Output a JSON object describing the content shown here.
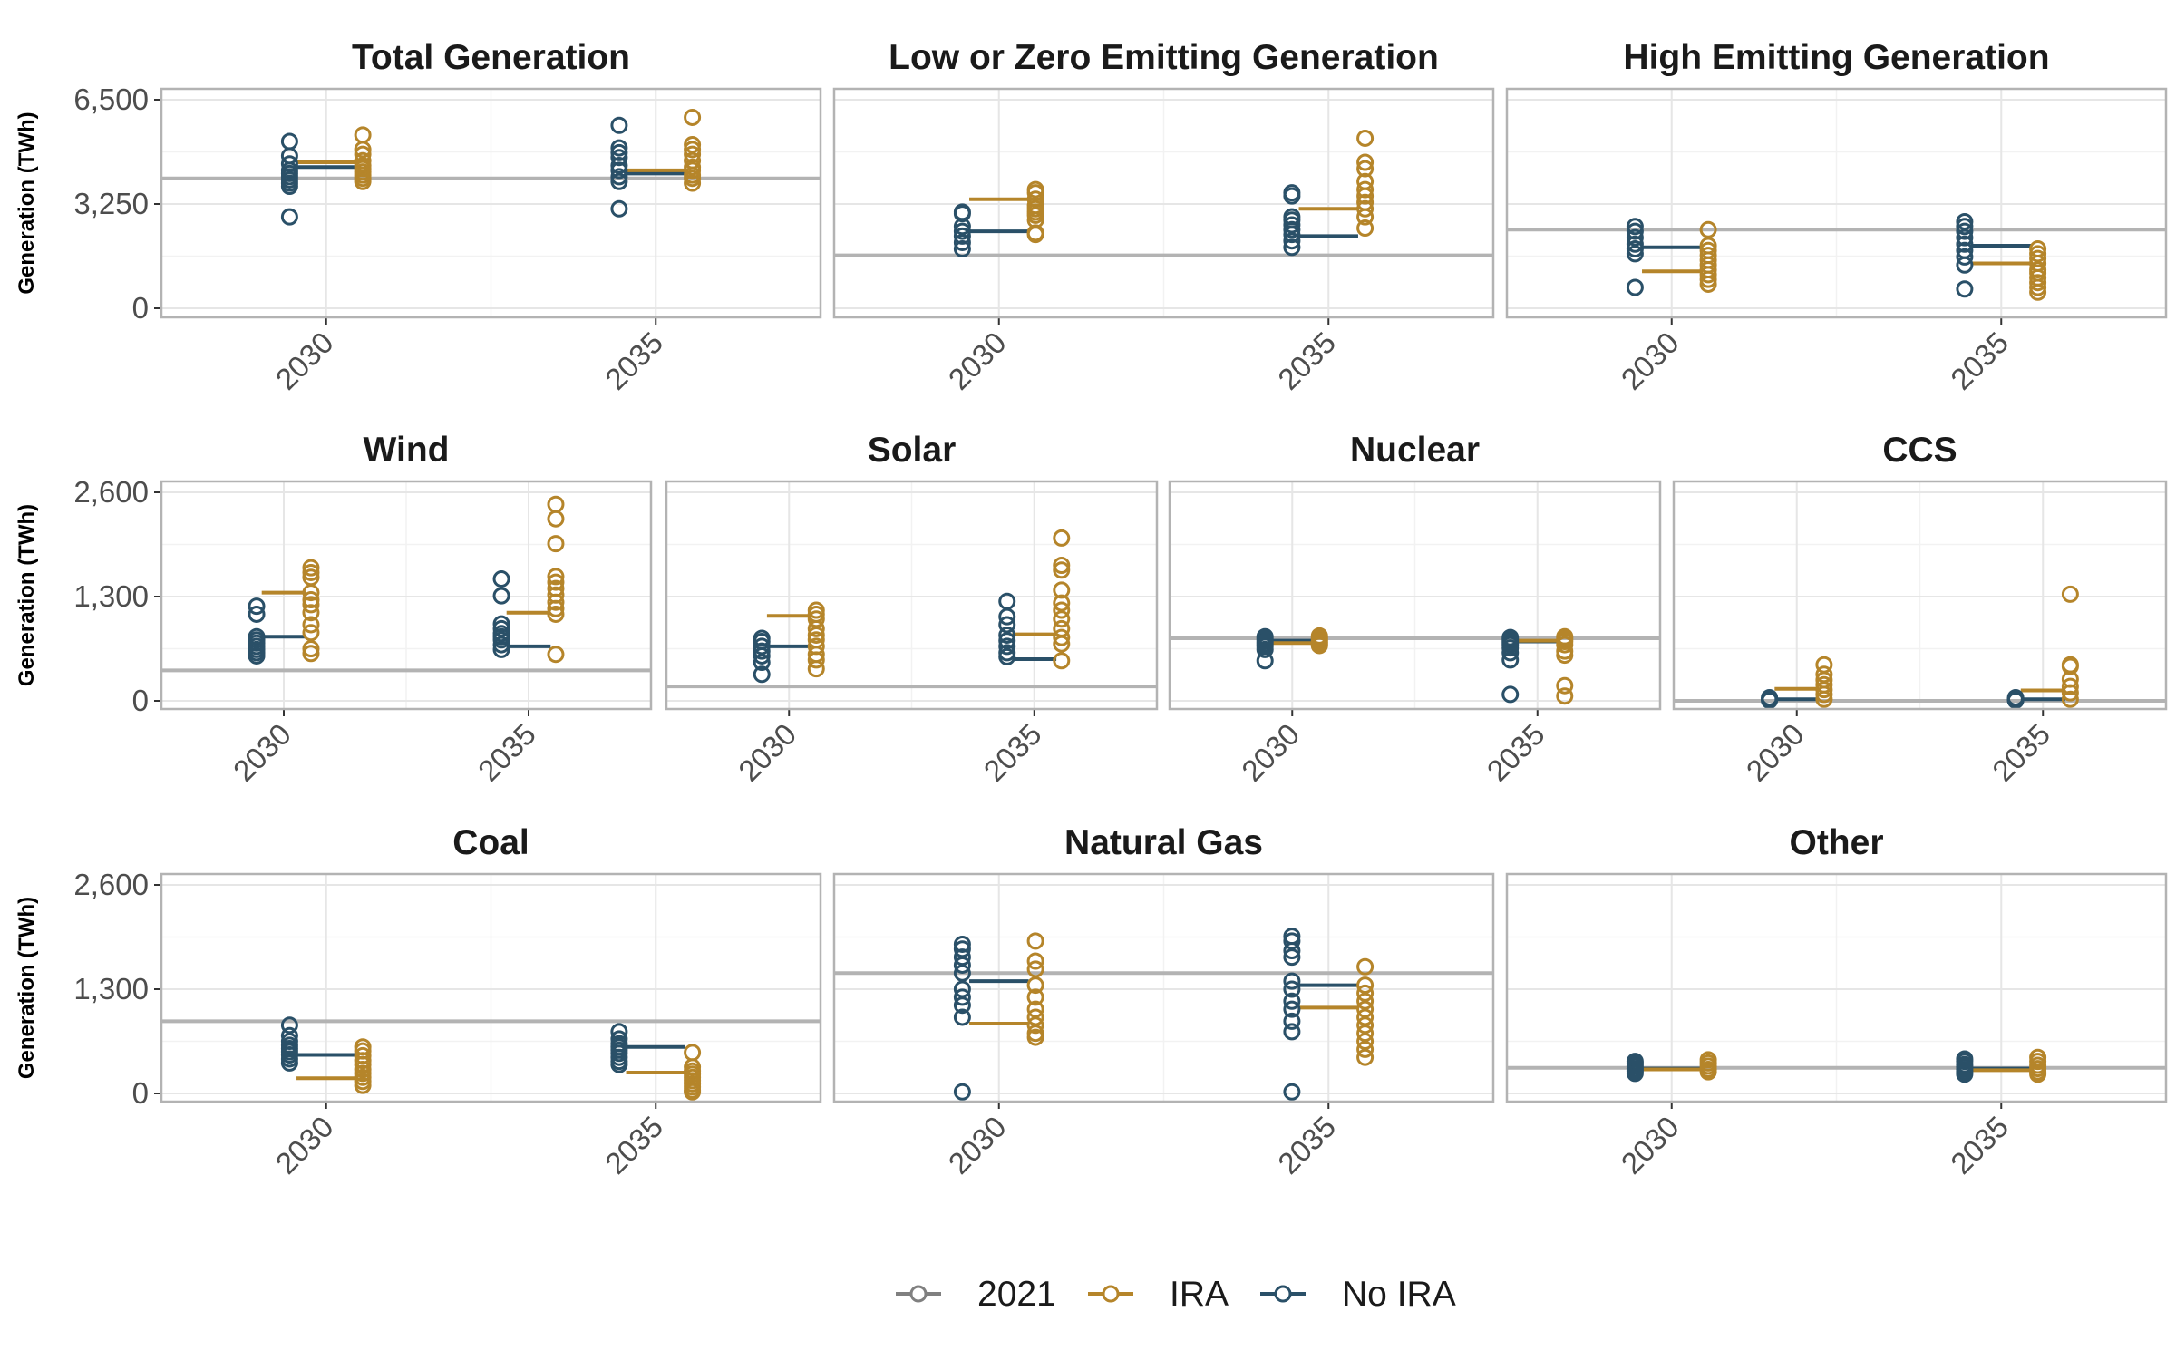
{
  "legend": {
    "items": [
      {
        "label": "2021",
        "color": "#808080"
      },
      {
        "label": "IRA",
        "color": "#B5852A"
      },
      {
        "label": "No IRA",
        "color": "#2A5068"
      }
    ]
  },
  "chart_data": {
    "type": "scatter",
    "ylabel": "Generation (TWh)",
    "x_categories": [
      "2030",
      "2035"
    ],
    "series_colors": {
      "2021": "#808080",
      "IRA": "#B5852A",
      "No IRA": "#2A5068"
    },
    "rows": [
      {
        "ylim": [
          0,
          6500
        ],
        "yticks": [
          0,
          3250,
          6500
        ],
        "ytick_labels": [
          "0",
          "3,250",
          "6,500"
        ]
      },
      {
        "ylim": [
          0,
          2600
        ],
        "yticks": [
          0,
          1300,
          2600
        ],
        "ytick_labels": [
          "0",
          "1,300",
          "2,600"
        ]
      },
      {
        "ylim": [
          0,
          2600
        ],
        "yticks": [
          0,
          1300,
          2600
        ],
        "ytick_labels": [
          "0",
          "1,300",
          "2,600"
        ]
      }
    ],
    "panels": [
      {
        "title": "Total Generation",
        "row": 0,
        "col": 0,
        "baseline_2021": 4050,
        "no_ira_median": {
          "2030": 4400,
          "2035": 4200
        },
        "ira_median": {
          "2030": 4550,
          "2035": 4300
        },
        "no_ira_points": {
          "2030": [
            5200,
            4750,
            4500,
            4300,
            4200,
            4100,
            4000,
            3900,
            3800,
            2850
          ],
          "2035": [
            5700,
            5000,
            4850,
            4700,
            4450,
            4300,
            4100,
            3950,
            3100
          ]
        },
        "ira_points": {
          "2030": [
            5400,
            4950,
            4800,
            4600,
            4450,
            4350,
            4250,
            4150,
            4050,
            3950
          ],
          "2035": [
            5950,
            5100,
            4950,
            4800,
            4600,
            4400,
            4300,
            4150,
            4050,
            3900
          ]
        }
      },
      {
        "title": "Low or Zero Emitting Generation",
        "row": 0,
        "col": 1,
        "baseline_2021": 1650,
        "no_ira_median": {
          "2030": 2400,
          "2035": 2250
        },
        "ira_median": {
          "2030": 3400,
          "2035": 3100
        },
        "no_ira_points": {
          "2030": [
            3000,
            2950,
            2550,
            2400,
            2250,
            2050,
            1850
          ],
          "2035": [
            3600,
            3500,
            2850,
            2750,
            2600,
            2450,
            2300,
            2100,
            1900
          ]
        },
        "ira_points": {
          "2030": [
            3700,
            3600,
            3400,
            3200,
            3100,
            3000,
            2900,
            2750,
            2350,
            2300
          ],
          "2035": [
            5300,
            4550,
            4350,
            3950,
            3700,
            3500,
            3300,
            3100,
            2850,
            2500
          ]
        }
      },
      {
        "title": "High Emitting Generation",
        "row": 0,
        "col": 2,
        "baseline_2021": 2450,
        "no_ira_median": {
          "2030": 1900,
          "2035": 1950
        },
        "ira_median": {
          "2030": 1150,
          "2035": 1400
        },
        "no_ira_points": {
          "2030": [
            2550,
            2400,
            2200,
            2000,
            1850,
            1700,
            650
          ],
          "2035": [
            2700,
            2550,
            2400,
            2200,
            2000,
            1800,
            1600,
            1350,
            600
          ]
        },
        "ira_points": {
          "2030": [
            2450,
            1950,
            1800,
            1650,
            1500,
            1350,
            1200,
            1050,
            900,
            750
          ],
          "2035": [
            1850,
            1700,
            1550,
            1400,
            1200,
            1100,
            950,
            800,
            650,
            500
          ]
        }
      },
      {
        "title": "Wind",
        "row": 1,
        "col": 0,
        "baseline_2021": 380,
        "no_ira_median": {
          "2030": 800,
          "2035": 680
        },
        "ira_median": {
          "2030": 1350,
          "2035": 1100
        },
        "no_ira_points": {
          "2030": [
            1180,
            1080,
            800,
            760,
            720,
            680,
            640,
            600,
            560
          ],
          "2035": [
            1520,
            1310,
            960,
            900,
            840,
            800,
            760,
            700,
            640
          ]
        },
        "ira_points": {
          "2030": [
            1660,
            1600,
            1540,
            1350,
            1260,
            1200,
            1100,
            950,
            850,
            650,
            590
          ],
          "2035": [
            2450,
            2270,
            1960,
            1550,
            1480,
            1400,
            1320,
            1230,
            1150,
            1080,
            580
          ]
        }
      },
      {
        "title": "Solar",
        "row": 1,
        "col": 1,
        "baseline_2021": 180,
        "no_ira_median": {
          "2030": 680,
          "2035": 520
        },
        "ira_median": {
          "2030": 1060,
          "2035": 830
        },
        "no_ira_points": {
          "2030": [
            780,
            740,
            680,
            620,
            560,
            480,
            330
          ],
          "2035": [
            1240,
            1050,
            950,
            820,
            750,
            680,
            600,
            550
          ]
        },
        "ira_points": {
          "2030": [
            1130,
            1080,
            1020,
            900,
            820,
            760,
            680,
            580,
            510,
            400
          ],
          "2035": [
            2030,
            1690,
            1630,
            1380,
            1220,
            1130,
            1020,
            900,
            790,
            710,
            500
          ]
        }
      },
      {
        "title": "Nuclear",
        "row": 1,
        "col": 2,
        "baseline_2021": 780,
        "no_ira_median": {
          "2030": 750,
          "2035": 740
        },
        "ira_median": {
          "2030": 720,
          "2035": 750
        },
        "no_ira_points": {
          "2030": [
            800,
            770,
            740,
            710,
            680,
            640,
            500
          ],
          "2035": [
            790,
            760,
            730,
            700,
            660,
            600,
            510,
            80
          ]
        },
        "ira_points": {
          "2030": [
            810,
            790,
            770,
            750,
            730,
            710,
            690
          ],
          "2035": [
            800,
            770,
            740,
            700,
            620,
            570,
            190,
            60
          ]
        }
      },
      {
        "title": "CCS",
        "row": 1,
        "col": 3,
        "baseline_2021": 0,
        "no_ira_median": {
          "2030": 20,
          "2035": 20
        },
        "ira_median": {
          "2030": 150,
          "2035": 130
        },
        "no_ira_points": {
          "2030": [
            40,
            25,
            15,
            5
          ],
          "2035": [
            40,
            25,
            10,
            5
          ]
        },
        "ira_points": {
          "2030": [
            450,
            330,
            260,
            200,
            140,
            80,
            20
          ],
          "2035": [
            1330,
            450,
            430,
            270,
            180,
            100,
            20
          ]
        }
      },
      {
        "title": "Coal",
        "row": 2,
        "col": 0,
        "baseline_2021": 900,
        "no_ira_median": {
          "2030": 480,
          "2035": 580
        },
        "ira_median": {
          "2030": 190,
          "2035": 260
        },
        "no_ira_points": {
          "2030": [
            850,
            720,
            650,
            600,
            560,
            520,
            480,
            430,
            380
          ],
          "2035": [
            770,
            680,
            620,
            580,
            540,
            500,
            450,
            400,
            360
          ]
        },
        "ira_points": {
          "2030": [
            580,
            530,
            470,
            410,
            360,
            300,
            250,
            200,
            150,
            100
          ],
          "2035": [
            510,
            330,
            280,
            240,
            200,
            160,
            120,
            80,
            40,
            20
          ]
        }
      },
      {
        "title": "Natural Gas",
        "row": 2,
        "col": 1,
        "baseline_2021": 1500,
        "no_ira_median": {
          "2030": 1400,
          "2035": 1350
        },
        "ira_median": {
          "2030": 870,
          "2035": 1070
        },
        "no_ira_points": {
          "2030": [
            1860,
            1800,
            1700,
            1600,
            1500,
            1300,
            1200,
            1100,
            950,
            20
          ],
          "2035": [
            1960,
            1900,
            1780,
            1700,
            1400,
            1300,
            1150,
            1050,
            900,
            770,
            20
          ]
        },
        "ira_points": {
          "2030": [
            1900,
            1650,
            1550,
            1350,
            1200,
            1050,
            950,
            850,
            750,
            700
          ],
          "2035": [
            1580,
            1350,
            1250,
            1150,
            1050,
            950,
            850,
            750,
            650,
            550,
            450
          ]
        }
      },
      {
        "title": "Other",
        "row": 2,
        "col": 2,
        "baseline_2021": 320,
        "no_ira_median": {
          "2030": 310,
          "2035": 310
        },
        "ira_median": {
          "2030": 300,
          "2035": 290
        },
        "no_ira_points": {
          "2030": [
            400,
            370,
            340,
            310,
            280,
            250
          ],
          "2035": [
            430,
            400,
            360,
            330,
            300,
            270,
            240
          ]
        },
        "ira_points": {
          "2030": [
            420,
            380,
            340,
            300,
            270
          ],
          "2035": [
            450,
            400,
            350,
            310,
            270,
            240
          ]
        }
      }
    ]
  }
}
